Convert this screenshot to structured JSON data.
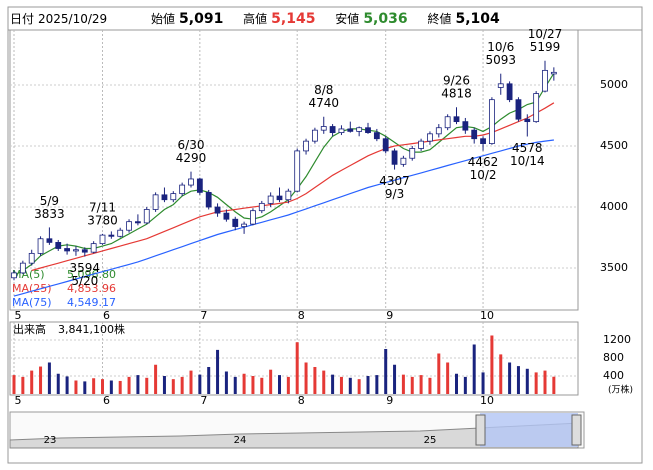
{
  "header": {
    "date_label": "日付",
    "date": "2025/10/29",
    "open_label": "始値",
    "open": "5,091",
    "high_label": "高値",
    "high": "5,145",
    "low_label": "安値",
    "low": "5,036",
    "close_label": "終値",
    "close": "5,104"
  },
  "chart_data": {
    "type": "candlestick",
    "categories": [
      "5",
      null,
      null,
      null,
      null,
      null,
      null,
      null,
      null,
      null,
      "6",
      null,
      null,
      null,
      null,
      null,
      null,
      null,
      null,
      null,
      null,
      "7",
      null,
      null,
      null,
      null,
      null,
      null,
      null,
      null,
      null,
      null,
      "8",
      null,
      null,
      null,
      null,
      null,
      null,
      null,
      null,
      null,
      "9",
      null,
      null,
      null,
      null,
      null,
      null,
      null,
      null,
      null,
      null,
      "10",
      null,
      null,
      null,
      null,
      null,
      null,
      null,
      null
    ],
    "ohlc": [
      [
        3420,
        3480,
        3400,
        3460
      ],
      [
        3460,
        3560,
        3450,
        3540
      ],
      [
        3540,
        3650,
        3520,
        3620
      ],
      [
        3620,
        3760,
        3600,
        3740
      ],
      [
        3740,
        3833,
        3690,
        3710
      ],
      [
        3710,
        3730,
        3640,
        3660
      ],
      [
        3660,
        3700,
        3610,
        3640
      ],
      [
        3640,
        3680,
        3600,
        3650
      ],
      [
        3650,
        3670,
        3594,
        3630
      ],
      [
        3630,
        3720,
        3620,
        3700
      ],
      [
        3700,
        3780,
        3690,
        3770
      ],
      [
        3770,
        3800,
        3740,
        3760
      ],
      [
        3760,
        3830,
        3750,
        3810
      ],
      [
        3810,
        3900,
        3790,
        3880
      ],
      [
        3880,
        3940,
        3850,
        3870
      ],
      [
        3870,
        4000,
        3860,
        3980
      ],
      [
        3980,
        4120,
        3960,
        4100
      ],
      [
        4100,
        4160,
        4040,
        4060
      ],
      [
        4060,
        4130,
        4040,
        4110
      ],
      [
        4110,
        4200,
        4090,
        4180
      ],
      [
        4180,
        4290,
        4160,
        4230
      ],
      [
        4230,
        4240,
        4100,
        4120
      ],
      [
        4120,
        4140,
        3980,
        4000
      ],
      [
        4000,
        4030,
        3920,
        3950
      ],
      [
        3950,
        3980,
        3880,
        3900
      ],
      [
        3900,
        3920,
        3810,
        3840
      ],
      [
        3840,
        3880,
        3780,
        3860
      ],
      [
        3860,
        3990,
        3850,
        3970
      ],
      [
        3970,
        4050,
        3950,
        4030
      ],
      [
        4030,
        4120,
        4000,
        4090
      ],
      [
        4090,
        4160,
        4040,
        4060
      ],
      [
        4060,
        4150,
        4030,
        4130
      ],
      [
        4130,
        4480,
        4120,
        4460
      ],
      [
        4460,
        4560,
        4430,
        4540
      ],
      [
        4540,
        4650,
        4520,
        4630
      ],
      [
        4630,
        4740,
        4600,
        4660
      ],
      [
        4660,
        4680,
        4580,
        4610
      ],
      [
        4610,
        4670,
        4590,
        4640
      ],
      [
        4640,
        4700,
        4610,
        4620
      ],
      [
        4620,
        4660,
        4580,
        4650
      ],
      [
        4650,
        4690,
        4600,
        4610
      ],
      [
        4610,
        4640,
        4540,
        4560
      ],
      [
        4560,
        4580,
        4440,
        4460
      ],
      [
        4460,
        4480,
        4307,
        4350
      ],
      [
        4350,
        4420,
        4330,
        4400
      ],
      [
        4400,
        4500,
        4380,
        4480
      ],
      [
        4480,
        4560,
        4460,
        4540
      ],
      [
        4540,
        4620,
        4510,
        4600
      ],
      [
        4600,
        4680,
        4570,
        4650
      ],
      [
        4650,
        4760,
        4630,
        4740
      ],
      [
        4740,
        4818,
        4680,
        4700
      ],
      [
        4700,
        4730,
        4600,
        4630
      ],
      [
        4630,
        4650,
        4520,
        4560
      ],
      [
        4560,
        4580,
        4462,
        4520
      ],
      [
        4520,
        4900,
        4510,
        4880
      ],
      [
        4980,
        5093,
        4920,
        5010
      ],
      [
        5010,
        5030,
        4860,
        4880
      ],
      [
        4880,
        4900,
        4700,
        4720
      ],
      [
        4720,
        4760,
        4578,
        4700
      ],
      [
        4700,
        4950,
        4690,
        4930
      ],
      [
        4950,
        5199,
        4940,
        5120
      ],
      [
        5091,
        5145,
        5036,
        5104
      ]
    ],
    "up_color": "#ffffff",
    "down_color": "#1a237e",
    "series": [
      {
        "name": "MA(5)",
        "legend_value": "5,096.80",
        "color": "#2e8b2e",
        "values": [
          3440,
          3480,
          3530,
          3600,
          3640,
          3680,
          3690,
          3680,
          3660,
          3660,
          3680,
          3700,
          3740,
          3780,
          3820,
          3860,
          3920,
          3980,
          4020,
          4090,
          4130,
          4140,
          4120,
          4080,
          4020,
          3960,
          3910,
          3900,
          3920,
          3960,
          4010,
          4060,
          4150,
          4250,
          4370,
          4490,
          4580,
          4620,
          4640,
          4640,
          4630,
          4620,
          4580,
          4530,
          4480,
          4450,
          4450,
          4470,
          4530,
          4590,
          4650,
          4660,
          4650,
          4620,
          4660,
          4720,
          4770,
          4800,
          4840,
          4860,
          4980,
          5096.8
        ]
      },
      {
        "name": "MA(25)",
        "legend_value": "4,853.96",
        "color": "#e53935",
        "values": [
          null,
          null,
          3480,
          3500,
          3520,
          3540,
          3560,
          3580,
          3600,
          3620,
          3640,
          3660,
          3680,
          3700,
          3720,
          3740,
          3770,
          3800,
          3830,
          3860,
          3890,
          3920,
          3940,
          3960,
          3970,
          3980,
          3990,
          4000,
          4010,
          4020,
          4030,
          4040,
          4070,
          4110,
          4160,
          4210,
          4260,
          4300,
          4340,
          4380,
          4420,
          4450,
          4480,
          4500,
          4510,
          4520,
          4530,
          4540,
          4550,
          4560,
          4570,
          4580,
          4580,
          4590,
          4610,
          4640,
          4670,
          4700,
          4730,
          4770,
          4810,
          4853.96
        ]
      },
      {
        "name": "MA(75)",
        "legend_value": "4,549.17",
        "color": "#2962ff",
        "values": [
          3270,
          3290,
          3310,
          3330,
          3350,
          3370,
          3390,
          3410,
          3430,
          3450,
          3470,
          3490,
          3510,
          3530,
          3550,
          3575,
          3600,
          3625,
          3650,
          3675,
          3700,
          3725,
          3750,
          3775,
          3795,
          3815,
          3835,
          3855,
          3875,
          3895,
          3915,
          3935,
          3960,
          3985,
          4010,
          4035,
          4060,
          4085,
          4110,
          4135,
          4160,
          4180,
          4200,
          4220,
          4240,
          4260,
          4280,
          4300,
          4320,
          4340,
          4360,
          4380,
          4400,
          4420,
          4440,
          4460,
          4480,
          4500,
          4515,
          4530,
          4540,
          4549.17
        ]
      }
    ],
    "ylim": [
      3156,
      5451
    ],
    "yticks": [
      3500,
      4000,
      4500,
      5000
    ],
    "grid": true,
    "annotations": [
      {
        "date": "5/9",
        "value": 3833
      },
      {
        "date": "5/20",
        "value": 3594
      },
      {
        "date": "6/30",
        "value": 4290
      },
      {
        "date": "7/11",
        "value": 3780
      },
      {
        "date": "8/8",
        "value": 4740
      },
      {
        "date": "9/3",
        "value": 4307
      },
      {
        "date": "9/26",
        "value": 4818
      },
      {
        "date": "10/2",
        "value": 4462
      },
      {
        "date": "10/6",
        "value": 5093
      },
      {
        "date": "10/14",
        "value": 4578
      },
      {
        "date": "10/27",
        "value": 5199
      }
    ],
    "volume": {
      "title": "出来高",
      "total": "3,841,100株",
      "unit": "(万株)",
      "up_color": "#e53935",
      "down_color": "#1a237e",
      "values": [
        420,
        380,
        520,
        610,
        700,
        450,
        390,
        300,
        280,
        350,
        330,
        300,
        290,
        380,
        420,
        360,
        650,
        400,
        330,
        380,
        520,
        430,
        600,
        980,
        500,
        380,
        450,
        400,
        360,
        540,
        420,
        380,
        1150,
        700,
        600,
        520,
        430,
        380,
        360,
        330,
        400,
        420,
        1000,
        650,
        430,
        380,
        420,
        360,
        900,
        700,
        450,
        380,
        1100,
        480,
        1300,
        880,
        700,
        620,
        560,
        480,
        520,
        384.11
      ],
      "ylim": [
        0,
        1422
      ],
      "yticks": [
        400,
        800,
        1200
      ]
    }
  },
  "navigator": {
    "labels": [
      "23",
      "24",
      "25"
    ]
  }
}
